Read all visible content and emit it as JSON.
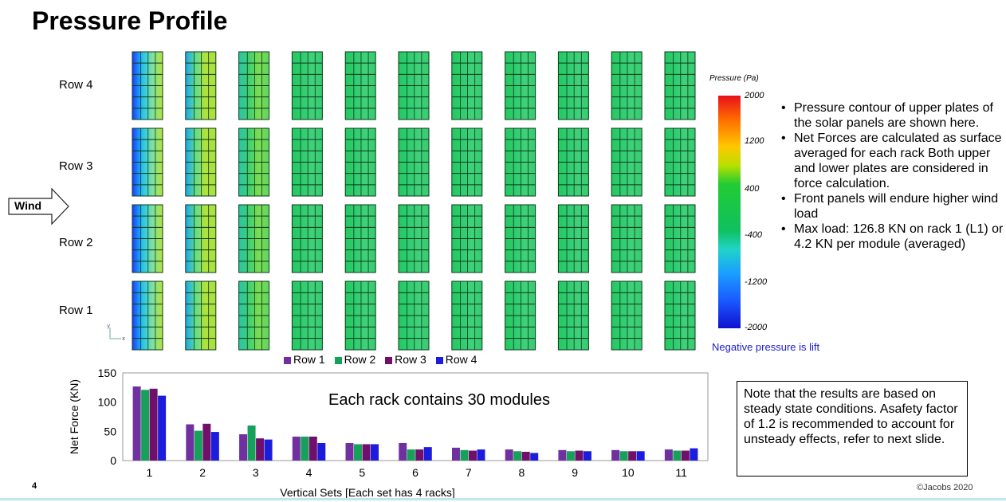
{
  "title": "Pressure Profile",
  "row_labels": [
    "Row 4",
    "Row 3",
    "Row 2",
    "Row 1"
  ],
  "wind_label": "Wind",
  "colorbar": {
    "title": "Pressure (Pa)",
    "ticks": [
      "2000",
      "1200",
      "400",
      "-400",
      "-1200",
      "-2000"
    ],
    "note": "Negative pressure is lift"
  },
  "bullets": [
    "Pressure contour of upper plates of the solar panels are shown here.",
    "Net Forces are calculated as surface averaged for each rack Both upper and lower plates are considered in force calculation.",
    "Front panels will endure higher wind load",
    "Max load: 126.8 KN on rack 1 (L1) or 4.2 KN per module (averaged)"
  ],
  "note_box": "Note that the results are based on steady state conditions. Asafety factor of 1.2 is recommended to account for unsteady effects, refer to next slide.",
  "slide_number": "4",
  "copyright": "©Jacobs 2020",
  "colors": {
    "row1": "#7030a0",
    "row2": "#16a05a",
    "row3": "#70106a",
    "row4": "#1c1cdc"
  },
  "chart_data": {
    "type": "bar",
    "annotation": "Each rack contains 30 modules",
    "xlabel": "Vertical Sets [Each set has 4 racks]",
    "ylabel": "Net Force (KN)",
    "ylim": [
      0,
      150
    ],
    "yticks": [
      0,
      50,
      100,
      150
    ],
    "categories": [
      "1",
      "2",
      "3",
      "4",
      "5",
      "6",
      "7",
      "8",
      "9",
      "10",
      "11"
    ],
    "legend_position": "top",
    "series": [
      {
        "name": "Row 1",
        "color": "#7030a0",
        "values": [
          126.8,
          62,
          45,
          41,
          30,
          30,
          22,
          19,
          18,
          18,
          19
        ]
      },
      {
        "name": "Row 2",
        "color": "#16a05a",
        "values": [
          121,
          51,
          60,
          41,
          28,
          19,
          18,
          16,
          16,
          16,
          17
        ]
      },
      {
        "name": "Row 3",
        "color": "#70106a",
        "values": [
          123,
          63,
          38,
          41,
          28,
          19,
          17,
          15,
          17,
          16,
          17
        ]
      },
      {
        "name": "Row 4",
        "color": "#1c1cdc",
        "values": [
          111,
          49,
          36,
          30,
          28,
          23,
          19,
          13,
          16,
          16,
          21
        ]
      }
    ]
  }
}
